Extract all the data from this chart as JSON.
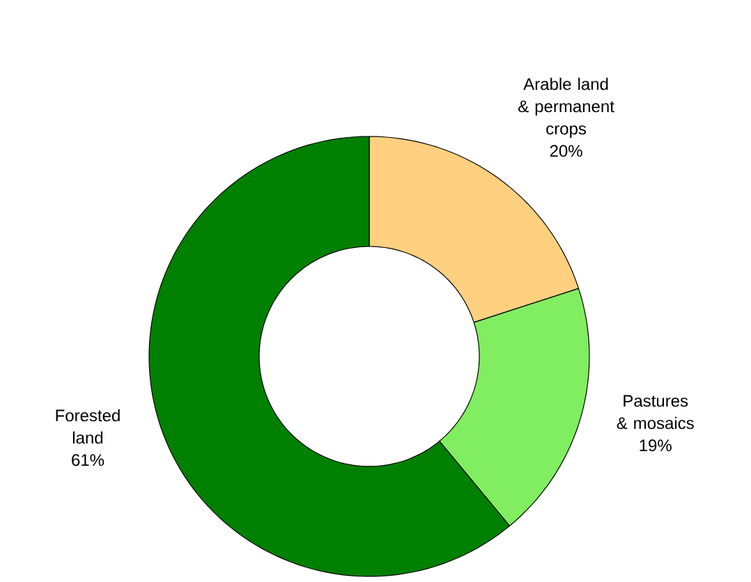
{
  "chart_data": {
    "type": "donut",
    "categories": [
      "Arable land & permanent crops",
      "Pastures & mosaics",
      "Forested land"
    ],
    "values": [
      20,
      19,
      61
    ],
    "colors": [
      "#ffd080",
      "#80ee60",
      "#008000"
    ],
    "value_labels": [
      "20%",
      "19%",
      "61%"
    ]
  }
}
